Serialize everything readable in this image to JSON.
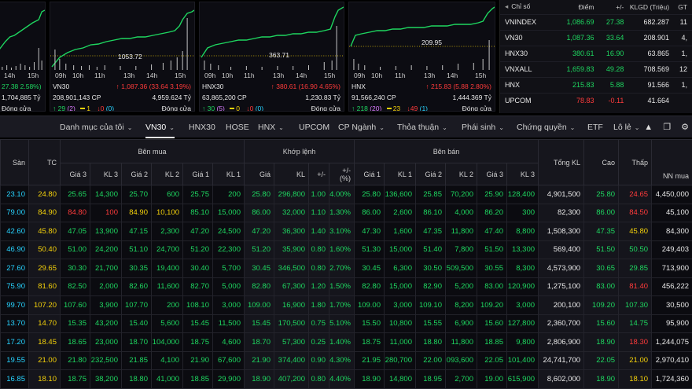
{
  "cards": [
    {
      "id": "vnindex",
      "times": [
        "",
        "14h",
        "15h"
      ],
      "ylabel": "",
      "change": "27.38 2.58%)",
      "change_prefix": "",
      "volume": "1,704,885 Tỷ",
      "status": "Đóng cửa",
      "up": "",
      "ref": "",
      "down": "",
      "ceil": "",
      "floor": ""
    },
    {
      "id": "vn30",
      "times": [
        "09h",
        "10h",
        "11h",
        "13h",
        "14h",
        "15h"
      ],
      "ylabel": "1053.72",
      "name": "VN30",
      "change_arrow": "↑",
      "change": "1,087.36 (33.64 3.19%)",
      "volume": "208,901,143 CP",
      "value": "4,959.624 Tỷ",
      "status": "Đóng cửa",
      "up_arrow": "↑",
      "up": "29",
      "ceil": "(2)",
      "ref": "1",
      "down_arrow": "↓",
      "down": "0",
      "floor": "(0)"
    },
    {
      "id": "hnx30",
      "times": [
        "09h",
        "10h",
        "11h",
        "13h",
        "14h",
        "15h"
      ],
      "ylabel": "363.71",
      "name": "HNX30",
      "change_arrow": "↑",
      "change": "380.61 (16.90 4.65%)",
      "volume": "63,865,200 CP",
      "value": "1,230.83 Tỷ",
      "status": "Đóng cửa",
      "up_arrow": "↑",
      "up": "30",
      "ceil": "(5)",
      "ref": "0",
      "down_arrow": "↓",
      "down": "0",
      "floor": "(0)"
    },
    {
      "id": "hnx",
      "times": [
        "09h",
        "10h",
        "11h",
        "13h",
        "14h",
        "15h"
      ],
      "ylabel": "209.95",
      "name": "HNX",
      "change_arrow": "↑",
      "change": "215.83 (5.88 2.80%)",
      "volume": "91,566,240 CP",
      "value": "1,444.369 Tỷ",
      "status": "Đóng cửa",
      "up_arrow": "↑",
      "up": "218",
      "ceil": "(20)",
      "ref": "23",
      "down_arrow": "↓",
      "down": "49",
      "floor": "(1)"
    }
  ],
  "index_table": {
    "headers": [
      "Chỉ số",
      "Điểm",
      "+/-",
      "KLGD (Triệu)",
      "GT"
    ],
    "rows": [
      {
        "name": "VNINDEX",
        "point": "1,086.69",
        "change": "27.38",
        "vol": "682.287",
        "gt": "11",
        "color": "g"
      },
      {
        "name": "VN30",
        "point": "1,087.36",
        "change": "33.64",
        "vol": "208.901",
        "gt": "4,",
        "color": "g"
      },
      {
        "name": "HNX30",
        "point": "380.61",
        "change": "16.90",
        "vol": "63.865",
        "gt": "1,",
        "color": "g"
      },
      {
        "name": "VNXALL",
        "point": "1,659.83",
        "change": "49.28",
        "vol": "708.569",
        "gt": "12",
        "color": "g"
      },
      {
        "name": "HNX",
        "point": "215.83",
        "change": "5.88",
        "vol": "91.566",
        "gt": "1,",
        "color": "g"
      },
      {
        "name": "UPCOM",
        "point": "78.83",
        "change": "-0.11",
        "vol": "41.664",
        "gt": "",
        "color": "r"
      }
    ]
  },
  "tabs": [
    {
      "label": "Danh mục của tôi",
      "chev": true,
      "active": false
    },
    {
      "label": "VN30",
      "chev": true,
      "active": true
    },
    {
      "label": "HNX30",
      "chev": false,
      "active": false
    },
    {
      "label": "HOSE",
      "chev": false,
      "active": false
    },
    {
      "label": "HNX",
      "chev": true,
      "active": false
    },
    {
      "label": "UPCOM",
      "chev": false,
      "active": false
    },
    {
      "label": "CP Ngành",
      "chev": true,
      "active": false
    },
    {
      "label": "Thỏa thuận",
      "chev": true,
      "active": false
    },
    {
      "label": "Phái sinh",
      "chev": true,
      "active": false
    },
    {
      "label": "Chứng quyền",
      "chev": true,
      "active": false
    },
    {
      "label": "ETF",
      "chev": false,
      "active": false
    },
    {
      "label": "Lô lẻ",
      "chev": true,
      "active": false
    }
  ],
  "board": {
    "group_headers": {
      "buy": "Bên mua",
      "match": "Khớp lệnh",
      "sell": "Bên bán"
    },
    "col_headers": [
      "Sàn",
      "TC",
      "Giá 3",
      "KL 3",
      "Giá 2",
      "KL 2",
      "Giá 1",
      "KL 1",
      "Giá",
      "KL",
      "+/-",
      "+/- (%)",
      "Giá 1",
      "KL 1",
      "Giá 2",
      "KL 2",
      "Giá 3",
      "KL 3",
      "Tổng KL",
      "Cao",
      "Thấp",
      "NN mua"
    ],
    "rows": [
      {
        "c": [
          "23.10",
          "24.80",
          "25.65",
          "14,300",
          "25.70",
          "600",
          "25.75",
          "200",
          "25.80",
          "296,800",
          "1.00",
          "4.00%",
          "25.80",
          "136,600",
          "25.85",
          "70,200",
          "25.90",
          "128,400",
          "4,901,500",
          "25.80",
          "24.65",
          "4,450,000"
        ],
        "k": [
          "c",
          "y",
          "g",
          "g",
          "g",
          "g",
          "g",
          "g",
          "g",
          "g",
          "g",
          "g",
          "g",
          "g",
          "g",
          "g",
          "g",
          "g",
          "w",
          "g",
          "r",
          "w"
        ]
      },
      {
        "c": [
          "79.00",
          "84.90",
          "84.80",
          "100",
          "84.90",
          "10,100",
          "85.10",
          "15,000",
          "86.00",
          "32,000",
          "1.10",
          "1.30%",
          "86.00",
          "2,600",
          "86.10",
          "4,000",
          "86.20",
          "300",
          "82,300",
          "86.00",
          "84.50",
          "45,100"
        ],
        "k": [
          "c",
          "y",
          "r",
          "r",
          "y",
          "y",
          "g",
          "g",
          "g",
          "g",
          "g",
          "g",
          "g",
          "g",
          "g",
          "g",
          "g",
          "g",
          "w",
          "g",
          "r",
          "w"
        ]
      },
      {
        "c": [
          "42.60",
          "45.80",
          "47.05",
          "13,900",
          "47.15",
          "2,300",
          "47.20",
          "24,500",
          "47.20",
          "36,300",
          "1.40",
          "3.10%",
          "47.30",
          "1,600",
          "47.35",
          "11,800",
          "47.40",
          "8,800",
          "1,508,300",
          "47.35",
          "45.80",
          "84,300"
        ],
        "k": [
          "c",
          "y",
          "g",
          "g",
          "g",
          "g",
          "g",
          "g",
          "g",
          "g",
          "g",
          "g",
          "g",
          "g",
          "g",
          "g",
          "g",
          "g",
          "w",
          "g",
          "y",
          "w"
        ]
      },
      {
        "c": [
          "46.90",
          "50.40",
          "51.00",
          "24,200",
          "51.10",
          "24,700",
          "51.20",
          "22,300",
          "51.20",
          "35,900",
          "0.80",
          "1.60%",
          "51.30",
          "15,000",
          "51.40",
          "7,800",
          "51.50",
          "13,300",
          "569,400",
          "51.50",
          "50.50",
          "249,403"
        ],
        "k": [
          "c",
          "y",
          "g",
          "g",
          "g",
          "g",
          "g",
          "g",
          "g",
          "g",
          "g",
          "g",
          "g",
          "g",
          "g",
          "g",
          "g",
          "g",
          "w",
          "g",
          "g",
          "w"
        ]
      },
      {
        "c": [
          "27.60",
          "29.65",
          "30.30",
          "21,700",
          "30.35",
          "19,400",
          "30.40",
          "5,700",
          "30.45",
          "346,500",
          "0.80",
          "2.70%",
          "30.45",
          "6,300",
          "30.50",
          "509,500",
          "30.55",
          "8,300",
          "4,573,900",
          "30.65",
          "29.85",
          "713,900"
        ],
        "k": [
          "c",
          "y",
          "g",
          "g",
          "g",
          "g",
          "g",
          "g",
          "g",
          "g",
          "g",
          "g",
          "g",
          "g",
          "g",
          "g",
          "g",
          "g",
          "w",
          "g",
          "g",
          "w"
        ]
      },
      {
        "c": [
          "75.90",
          "81.60",
          "82.50",
          "2,000",
          "82.60",
          "11,600",
          "82.70",
          "5,000",
          "82.80",
          "67,300",
          "1.20",
          "1.50%",
          "82.80",
          "15,000",
          "82.90",
          "5,200",
          "83.00",
          "120,900",
          "1,275,100",
          "83.00",
          "81.40",
          "456,222"
        ],
        "k": [
          "c",
          "y",
          "g",
          "g",
          "g",
          "g",
          "g",
          "g",
          "g",
          "g",
          "g",
          "g",
          "g",
          "g",
          "g",
          "g",
          "g",
          "g",
          "w",
          "g",
          "r",
          "w"
        ]
      },
      {
        "c": [
          "99.70",
          "107.20",
          "107.60",
          "3,900",
          "107.70",
          "200",
          "108.10",
          "3,000",
          "109.00",
          "16,900",
          "1.80",
          "1.70%",
          "109.00",
          "3,000",
          "109.10",
          "8,200",
          "109.20",
          "3,000",
          "200,100",
          "109.20",
          "107.30",
          "30,500"
        ],
        "k": [
          "c",
          "y",
          "g",
          "g",
          "g",
          "g",
          "g",
          "g",
          "g",
          "g",
          "g",
          "g",
          "g",
          "g",
          "g",
          "g",
          "g",
          "g",
          "w",
          "g",
          "g",
          "w"
        ]
      },
      {
        "c": [
          "13.70",
          "14.70",
          "15.35",
          "43,200",
          "15.40",
          "5,600",
          "15.45",
          "11,500",
          "15.45",
          "170,500",
          "0.75",
          "5.10%",
          "15.50",
          "10,800",
          "15.55",
          "6,900",
          "15.60",
          "127,800",
          "2,360,700",
          "15.60",
          "14.75",
          "95,900"
        ],
        "k": [
          "c",
          "y",
          "g",
          "g",
          "g",
          "g",
          "g",
          "g",
          "g",
          "g",
          "g",
          "g",
          "g",
          "g",
          "g",
          "g",
          "g",
          "g",
          "w",
          "g",
          "g",
          "w"
        ]
      },
      {
        "c": [
          "17.20",
          "18.45",
          "18.65",
          "23,000",
          "18.70",
          "104,000",
          "18.75",
          "4,600",
          "18.70",
          "57,300",
          "0.25",
          "1.40%",
          "18.75",
          "11,000",
          "18.80",
          "11,800",
          "18.85",
          "9,800",
          "2,806,900",
          "18.90",
          "18.30",
          "1,244,075"
        ],
        "k": [
          "c",
          "y",
          "g",
          "g",
          "g",
          "g",
          "g",
          "g",
          "g",
          "g",
          "g",
          "g",
          "g",
          "g",
          "g",
          "g",
          "g",
          "g",
          "w",
          "g",
          "r",
          "w"
        ]
      },
      {
        "c": [
          "19.55",
          "21.00",
          "21.80",
          "232,500",
          "21.85",
          "4,100",
          "21.90",
          "67,600",
          "21.90",
          "374,400",
          "0.90",
          "4.30%",
          "21.95",
          "280,700",
          "22.00",
          "093,600",
          "22.05",
          "101,400",
          "24,741,700",
          "22.05",
          "21.00",
          "2,970,410"
        ],
        "k": [
          "c",
          "y",
          "g",
          "g",
          "g",
          "g",
          "g",
          "g",
          "g",
          "g",
          "g",
          "g",
          "g",
          "g",
          "g",
          "g",
          "g",
          "g",
          "w",
          "g",
          "y",
          "w"
        ]
      },
      {
        "c": [
          "16.85",
          "18.10",
          "18.75",
          "38,200",
          "18.80",
          "41,000",
          "18.85",
          "29,900",
          "18.90",
          "407,200",
          "0.80",
          "4.40%",
          "18.90",
          "14,800",
          "18.95",
          "2,700",
          "19.00",
          "615,900",
          "8,602,000",
          "18.90",
          "18.10",
          "1,724,360"
        ],
        "k": [
          "c",
          "y",
          "g",
          "g",
          "g",
          "g",
          "g",
          "g",
          "g",
          "g",
          "g",
          "g",
          "g",
          "g",
          "g",
          "g",
          "g",
          "g",
          "w",
          "g",
          "y",
          "w"
        ]
      }
    ]
  }
}
